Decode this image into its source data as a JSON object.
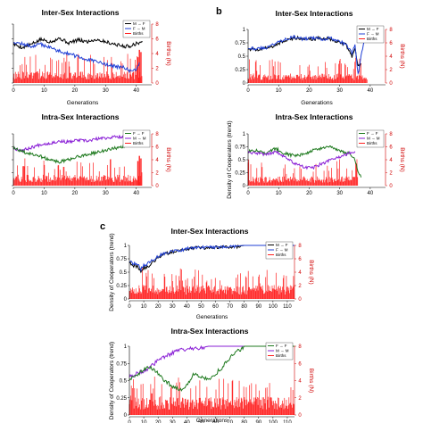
{
  "panel_letters": [
    {
      "id": "a",
      "label": ""
    },
    {
      "id": "b",
      "label": "b"
    },
    {
      "id": "c",
      "label": "c"
    }
  ],
  "colors": {
    "m_f": "#000000",
    "f_m": "#1f3fd6",
    "f_f": "#1f7a1f",
    "m_m": "#8a1fd6",
    "births": "#ff2020"
  },
  "chart_data": [
    {
      "id": "a-inter",
      "type": "line",
      "title": "Inter-Sex Interactions",
      "xlabel": "Generations",
      "ylabel": "",
      "y2label": "Births (N)",
      "xlim": [
        0,
        45
      ],
      "ylim": [
        0,
        1
      ],
      "y2lim": [
        0,
        8
      ],
      "xticks": [
        "0",
        "10",
        "20",
        "30",
        "40"
      ],
      "yticks": [],
      "y2ticks": [
        "0",
        "2",
        "4",
        "6",
        "8"
      ],
      "legend": [
        "M → F",
        "F → M",
        "Births"
      ],
      "legend_position": "top-right",
      "series": [
        {
          "name": "M → F",
          "color_key": "m_f",
          "x": [
            0,
            3,
            6,
            9,
            12,
            15,
            18,
            21,
            24,
            27,
            30,
            33,
            36,
            38,
            40,
            42
          ],
          "y": [
            0.66,
            0.6,
            0.66,
            0.74,
            0.7,
            0.76,
            0.68,
            0.73,
            0.7,
            0.74,
            0.7,
            0.66,
            0.62,
            0.63,
            0.67,
            0.7
          ]
        },
        {
          "name": "F → M",
          "color_key": "f_m",
          "x": [
            0,
            3,
            6,
            9,
            12,
            15,
            18,
            21,
            24,
            27,
            30,
            33,
            36,
            38,
            40,
            41
          ],
          "y": [
            0.7,
            0.66,
            0.62,
            0.66,
            0.6,
            0.54,
            0.5,
            0.44,
            0.4,
            0.36,
            0.32,
            0.28,
            0.26,
            0.2,
            0.24,
            0.35
          ]
        }
      ],
      "births_spikes": [
        {
          "x": 40.5,
          "y": 3.5
        },
        {
          "x": 41,
          "y": 4.5
        },
        {
          "x": 41.5,
          "y": 4.2
        }
      ],
      "births_xmax": 42,
      "births_base": 1.2
    },
    {
      "id": "b-inter",
      "type": "line",
      "title": "Inter-Sex Interactions",
      "xlabel": "Generations",
      "ylabel": "",
      "y2label": "Births (N)",
      "xlim": [
        0,
        45
      ],
      "ylim": [
        0,
        1
      ],
      "y2lim": [
        0,
        8
      ],
      "xticks": [
        "0",
        "10",
        "20",
        "30",
        "40"
      ],
      "yticks": [
        "0",
        "0.25",
        "0.5",
        "0.75",
        "1"
      ],
      "y2ticks": [
        "0",
        "2",
        "4",
        "6",
        "8"
      ],
      "legend": [
        "M → F",
        "F → M",
        "Births"
      ],
      "legend_position": "top-right",
      "series": [
        {
          "name": "M → F",
          "color_key": "m_f",
          "x": [
            0,
            3,
            6,
            9,
            12,
            15,
            18,
            21,
            24,
            27,
            30,
            32,
            34,
            35,
            36,
            37
          ],
          "y": [
            0.64,
            0.62,
            0.66,
            0.7,
            0.8,
            0.84,
            0.84,
            0.82,
            0.84,
            0.82,
            0.76,
            0.72,
            0.5,
            0.66,
            0.3,
            0.35
          ]
        },
        {
          "name": "F → M",
          "color_key": "f_m",
          "x": [
            0,
            3,
            6,
            9,
            12,
            15,
            18,
            21,
            24,
            27,
            30,
            32,
            34,
            35,
            36,
            37,
            38,
            39
          ],
          "y": [
            0.66,
            0.64,
            0.66,
            0.74,
            0.82,
            0.86,
            0.82,
            0.84,
            0.82,
            0.84,
            0.78,
            0.72,
            0.56,
            0.7,
            0.16,
            0.5,
            0.76,
            0.9
          ]
        }
      ],
      "births_spikes": [],
      "births_xmax": 39,
      "births_base": 1.1
    },
    {
      "id": "a-intra",
      "type": "line",
      "title": "Intra-Sex Interactions",
      "xlabel": "",
      "ylabel": "",
      "y2label": "Births (N)",
      "xlim": [
        0,
        45
      ],
      "ylim": [
        0,
        1
      ],
      "y2lim": [
        0,
        8
      ],
      "xticks": [
        "0",
        "10",
        "20",
        "30",
        "40"
      ],
      "yticks": [],
      "y2ticks": [
        "0",
        "2",
        "4",
        "6",
        "8"
      ],
      "legend": [
        "F → F",
        "M → M",
        "Births"
      ],
      "legend_position": "top-right",
      "series": [
        {
          "name": "M → M",
          "color_key": "m_m",
          "x": [
            0,
            3,
            6,
            9,
            12,
            15,
            18,
            21,
            24,
            27,
            30,
            33,
            36,
            39,
            41
          ],
          "y": [
            0.72,
            0.68,
            0.74,
            0.8,
            0.82,
            0.86,
            0.84,
            0.88,
            0.86,
            0.9,
            0.92,
            0.94,
            0.95,
            0.97,
            0.98
          ]
        },
        {
          "name": "F → F",
          "color_key": "f_f",
          "x": [
            0,
            3,
            6,
            9,
            12,
            15,
            18,
            21,
            24,
            27,
            30,
            33,
            36,
            39,
            41
          ],
          "y": [
            0.72,
            0.66,
            0.6,
            0.56,
            0.5,
            0.46,
            0.5,
            0.56,
            0.6,
            0.64,
            0.68,
            0.72,
            0.76,
            0.8,
            0.8
          ]
        }
      ],
      "births_spikes": [
        {
          "x": 40.5,
          "y": 3.8
        },
        {
          "x": 41,
          "y": 4.6
        },
        {
          "x": 41.5,
          "y": 4.2
        }
      ],
      "births_xmax": 42,
      "births_base": 1.3
    },
    {
      "id": "b-intra",
      "type": "line",
      "title": "Intra-Sex Interactions",
      "xlabel": "",
      "ylabel": "Density of Cooperators (trend)",
      "y2label": "Births (N)",
      "xlim": [
        0,
        45
      ],
      "ylim": [
        0,
        1
      ],
      "y2lim": [
        0,
        8
      ],
      "xticks": [
        "0",
        "10",
        "20",
        "30",
        "40"
      ],
      "yticks": [
        "0",
        "0.25",
        "0.5",
        "0.75",
        "1"
      ],
      "y2ticks": [
        "0",
        "2",
        "4",
        "6",
        "8"
      ],
      "legend": [
        "F → F",
        "M → M",
        "Births"
      ],
      "legend_position": "top-right",
      "series": [
        {
          "name": "F → F",
          "color_key": "f_f",
          "x": [
            0,
            3,
            6,
            9,
            12,
            15,
            18,
            21,
            24,
            27,
            30,
            33,
            35,
            36,
            37
          ],
          "y": [
            0.66,
            0.68,
            0.62,
            0.72,
            0.62,
            0.58,
            0.6,
            0.68,
            0.72,
            0.74,
            0.68,
            0.62,
            0.5,
            0.26,
            0.16
          ]
        },
        {
          "name": "M → M",
          "color_key": "m_m",
          "x": [
            0,
            3,
            6,
            9,
            12,
            15,
            18,
            21,
            24,
            27,
            30,
            33,
            35
          ],
          "y": [
            0.64,
            0.62,
            0.6,
            0.66,
            0.56,
            0.44,
            0.36,
            0.34,
            0.42,
            0.5,
            0.56,
            0.62,
            0.66
          ]
        }
      ],
      "births_spikes": [],
      "births_xmax": 36,
      "births_base": 1.1
    },
    {
      "id": "c-inter",
      "type": "line",
      "title": "Inter-Sex Interactions",
      "xlabel": "Generations",
      "ylabel": "Density of Cooperators (trend)",
      "y2label": "Births (N)",
      "xlim": [
        0,
        115
      ],
      "ylim": [
        0,
        1
      ],
      "y2lim": [
        0,
        8
      ],
      "xticks": [
        "0",
        "10",
        "20",
        "30",
        "40",
        "50",
        "60",
        "70",
        "80",
        "90",
        "100",
        "110"
      ],
      "yticks": [
        "0",
        "0.25",
        "0.5",
        "0.75",
        "1"
      ],
      "y2ticks": [
        "0",
        "2",
        "4",
        "6",
        "8"
      ],
      "legend": [
        "M → F",
        "F → M",
        "Births"
      ],
      "legend_position": "top-right",
      "series": [
        {
          "name": "M → F",
          "color_key": "m_f",
          "x": [
            0,
            3,
            6,
            8,
            10,
            13,
            16,
            20,
            25,
            30,
            35,
            40,
            50,
            55,
            60,
            65,
            70,
            75,
            80,
            115
          ],
          "y": [
            0.68,
            0.62,
            0.6,
            0.5,
            0.58,
            0.6,
            0.68,
            0.78,
            0.84,
            0.88,
            0.9,
            0.94,
            0.96,
            0.95,
            0.97,
            0.97,
            0.96,
            0.98,
            1,
            1
          ]
        },
        {
          "name": "F → M",
          "color_key": "f_m",
          "x": [
            0,
            3,
            6,
            8,
            10,
            13,
            16,
            20,
            25,
            30,
            35,
            40,
            50,
            55,
            60,
            65,
            70,
            75,
            80,
            115
          ],
          "y": [
            0.7,
            0.66,
            0.64,
            0.56,
            0.62,
            0.66,
            0.72,
            0.8,
            0.86,
            0.9,
            0.9,
            0.94,
            0.96,
            0.97,
            0.96,
            0.97,
            0.98,
            0.99,
            1,
            1
          ]
        }
      ],
      "births_spikes": [],
      "births_xmax": 115,
      "births_base": 1.6
    },
    {
      "id": "c-intra",
      "type": "line",
      "title": "Intra-Sex Interactions",
      "xlabel": "Generations",
      "ylabel": "Density of Cooperators (trend)",
      "y2label": "Births (N)",
      "xlim": [
        0,
        115
      ],
      "ylim": [
        0,
        1
      ],
      "y2lim": [
        0,
        8
      ],
      "xticks": [
        "0",
        "10",
        "20",
        "30",
        "40",
        "50",
        "60",
        "70",
        "80",
        "90",
        "100",
        "110"
      ],
      "yticks": [
        "0",
        "0.25",
        "0.5",
        "0.75",
        "1"
      ],
      "y2ticks": [
        "0",
        "2",
        "4",
        "6",
        "8"
      ],
      "legend": [
        "F → F",
        "M → M",
        "Births"
      ],
      "legend_position": "top-right",
      "series": [
        {
          "name": "M → M",
          "color_key": "m_m",
          "x": [
            0,
            5,
            10,
            15,
            20,
            25,
            30,
            35,
            40,
            45,
            50,
            55,
            60,
            115
          ],
          "y": [
            0.56,
            0.6,
            0.64,
            0.7,
            0.8,
            0.86,
            0.9,
            0.94,
            0.96,
            0.96,
            0.98,
            1,
            1,
            1
          ]
        },
        {
          "name": "F → F",
          "color_key": "f_f",
          "x": [
            0,
            5,
            10,
            15,
            20,
            25,
            30,
            35,
            40,
            45,
            50,
            55,
            60,
            65,
            70,
            75,
            78,
            80,
            115
          ],
          "y": [
            0.52,
            0.58,
            0.66,
            0.7,
            0.6,
            0.5,
            0.42,
            0.36,
            0.44,
            0.6,
            0.56,
            0.52,
            0.6,
            0.7,
            0.84,
            0.92,
            0.96,
            1,
            1
          ]
        }
      ],
      "births_spikes": [],
      "births_xmax": 115,
      "births_base": 1.6
    }
  ]
}
